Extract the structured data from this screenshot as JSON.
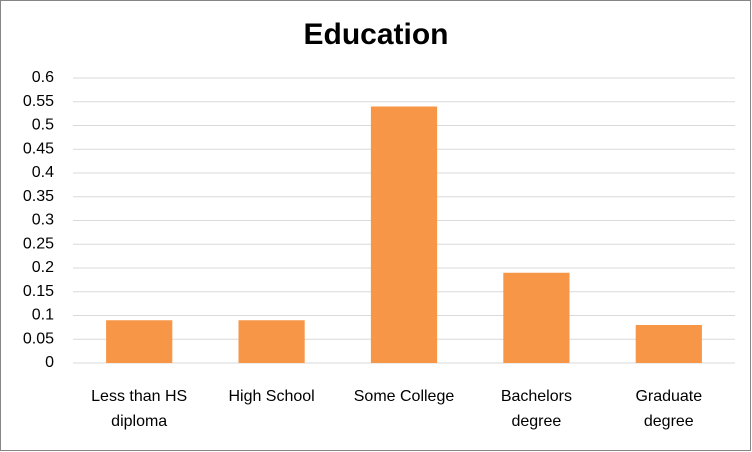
{
  "chart_data": {
    "type": "bar",
    "title": "Education",
    "categories": [
      "Less than HS diploma",
      "High School",
      "Some College",
      "Bachelors degree",
      "Graduate degree"
    ],
    "values": [
      0.09,
      0.09,
      0.54,
      0.19,
      0.08
    ],
    "color": "#f79646",
    "ylim": [
      0,
      0.6
    ],
    "yticks": [
      0,
      0.05,
      0.1,
      0.15,
      0.2,
      0.25,
      0.3,
      0.35,
      0.4,
      0.45,
      0.5,
      0.55,
      0.6
    ],
    "grid": true
  }
}
